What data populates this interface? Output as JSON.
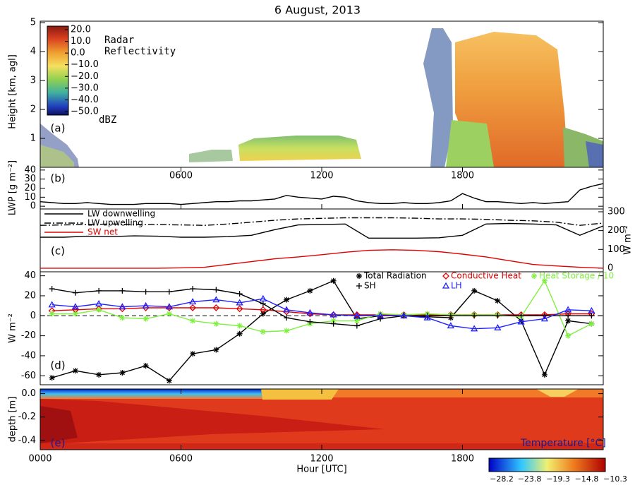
{
  "chart_data": [
    {
      "type": "heatmap",
      "title": "6 August, 2013",
      "label": "(a)",
      "ylabel": "Height [km, agl]",
      "xlim": [
        0,
        24
      ],
      "ylim": [
        0,
        5.05
      ],
      "yticks": [
        1,
        2,
        3,
        4,
        5
      ],
      "colorbar_title": [
        "Radar",
        "Reflectivity"
      ],
      "colorbar_unit": "dBZ",
      "cticks": [
        {
          "value": 20,
          "label": "20.0"
        },
        {
          "value": 10,
          "label": "10.0"
        },
        {
          "value": 0,
          "label": "0.0"
        },
        {
          "value": -10,
          "label": "−10.0"
        },
        {
          "value": -20,
          "label": "−20.0"
        },
        {
          "value": -30,
          "label": "−30.0"
        },
        {
          "value": -40,
          "label": "−40.0"
        },
        {
          "value": -50,
          "label": "−50.0"
        }
      ]
    },
    {
      "type": "line",
      "label": "(b)",
      "ylabel": "LWP [g m⁻²]",
      "xlim": [
        0,
        24
      ],
      "ylim": [
        -3,
        43
      ],
      "yticks": [
        0,
        10,
        20,
        30,
        40
      ],
      "xticks": [
        {
          "value": 6,
          "label": "0600"
        },
        {
          "value": 12,
          "label": "1200"
        },
        {
          "value": 18,
          "label": "1800"
        }
      ],
      "x": [
        0,
        0.5,
        1,
        1.5,
        2,
        2.5,
        3,
        3.5,
        4,
        4.5,
        5,
        5.5,
        6,
        6.5,
        7,
        7.5,
        8,
        8.5,
        9,
        9.5,
        10,
        10.5,
        11,
        11.5,
        12,
        12.5,
        13,
        13.5,
        14,
        14.5,
        15,
        15.5,
        16,
        16.5,
        17,
        17.5,
        18,
        18.5,
        19,
        19.5,
        20,
        20.5,
        21,
        21.5,
        22,
        22.5,
        23,
        23.5,
        24
      ],
      "values": [
        5,
        4,
        3,
        3,
        4,
        3,
        2,
        2,
        2,
        3,
        3,
        3,
        2,
        3,
        4,
        5,
        5,
        6,
        6,
        7,
        8,
        12,
        10,
        9,
        8,
        11,
        10,
        6,
        4,
        3,
        3,
        4,
        3,
        3,
        4,
        6,
        14,
        9,
        5,
        5,
        4,
        3,
        4,
        3,
        4,
        5,
        18,
        22,
        25
      ],
      "color": "#000000"
    },
    {
      "type": "line",
      "label": "(c)",
      "y2label": "W m⁻²",
      "xlim": [
        0,
        24
      ],
      "y2lim": [
        -19,
        315
      ],
      "y2ticks": [
        0,
        100,
        200,
        300
      ],
      "legend": "upper left",
      "x": [
        0,
        1,
        2,
        3,
        4,
        5,
        6,
        7,
        8,
        9,
        10,
        11,
        12,
        13,
        14,
        15,
        16,
        17,
        18,
        19,
        20,
        21,
        22,
        23,
        24
      ],
      "series": [
        {
          "name": "LW downwelling",
          "color": "#000000",
          "dash": "solid",
          "axis": "y2",
          "values": [
            165,
            165,
            170,
            168,
            172,
            170,
            165,
            165,
            168,
            175,
            205,
            230,
            232,
            235,
            160,
            160,
            160,
            162,
            175,
            235,
            238,
            235,
            230,
            175,
            225
          ]
        },
        {
          "name": "LW upwelling",
          "color": "#000000",
          "dash": "dash-dot",
          "axis": "y2",
          "values": [
            228,
            230,
            232,
            235,
            232,
            232,
            230,
            228,
            235,
            245,
            255,
            262,
            265,
            268,
            268,
            268,
            266,
            262,
            262,
            260,
            255,
            252,
            245,
            228,
            240
          ]
        },
        {
          "name": "SW net",
          "color": "#e00000",
          "dash": "solid",
          "axis": "y2",
          "values": [
            0,
            0,
            0,
            0,
            0,
            0,
            2,
            5,
            20,
            35,
            50,
            60,
            72,
            85,
            95,
            98,
            95,
            88,
            75,
            60,
            40,
            20,
            12,
            5,
            0
          ]
        }
      ]
    },
    {
      "type": "line",
      "label": "(d)",
      "ylabel": "W m⁻²",
      "xlim": [
        0,
        24
      ],
      "ylim": [
        -69,
        44
      ],
      "yticks": [
        -60,
        -40,
        -20,
        0,
        20,
        40
      ],
      "hline": 0,
      "legend": "upper right",
      "x": [
        0.5,
        1.5,
        2.5,
        3.5,
        4.5,
        5.5,
        6.5,
        7.5,
        8.5,
        9.5,
        10.5,
        11.5,
        12.5,
        13.5,
        14.5,
        15.5,
        16.5,
        17.5,
        18.5,
        19.5,
        20.5,
        21.5,
        22.5,
        23.5
      ],
      "series": [
        {
          "name": "Total Radiation",
          "color": "#000000",
          "marker": "asterisk",
          "values": [
            -62,
            -55,
            -59,
            -57,
            -50,
            -65,
            -38,
            -34,
            -18,
            2,
            16,
            25,
            35,
            -3,
            0,
            0,
            -1,
            -2,
            25,
            15,
            -5,
            -59,
            -5,
            -8
          ]
        },
        {
          "name": "Conductive Heat",
          "color": "#e00000",
          "marker": "diamond",
          "values": [
            5,
            6,
            7,
            7,
            8,
            8,
            8,
            8,
            7,
            6,
            4,
            2,
            1,
            1,
            1,
            1,
            1,
            1,
            1,
            1,
            1,
            1,
            2,
            2
          ]
        },
        {
          "name": "Heat Storage / 10",
          "color": "#80f040",
          "marker": "asterisk",
          "values": [
            2,
            2,
            6,
            -2,
            -3,
            2,
            -5,
            -8,
            -10,
            -16,
            -15,
            -8,
            -5,
            -5,
            2,
            1,
            2,
            1,
            1,
            1,
            -1,
            35,
            -20,
            -8
          ]
        },
        {
          "name": "SH",
          "color": "#000000",
          "marker": "plus",
          "values": [
            27,
            23,
            25,
            25,
            24,
            24,
            27,
            26,
            22,
            12,
            -2,
            -6,
            -8,
            -10,
            -3,
            0,
            0,
            0,
            0,
            0,
            0,
            0,
            0,
            0
          ]
        },
        {
          "name": "LH",
          "color": "#2020ff",
          "marker": "triangle",
          "values": [
            11,
            9,
            12,
            9,
            10,
            9,
            14,
            16,
            13,
            17,
            6,
            3,
            1,
            0,
            0,
            0,
            -2,
            -10,
            -13,
            -12,
            -6,
            -3,
            6,
            5
          ]
        }
      ]
    },
    {
      "type": "heatmap",
      "label": "(e)",
      "ylabel": "depth [m]",
      "xlabel": "Hour [UTC]",
      "xlim": [
        0,
        24
      ],
      "ylim": [
        -0.48,
        0.04
      ],
      "yticks": [
        {
          "value": 0,
          "label": "0.0"
        },
        {
          "value": -0.2,
          "label": "-0.2"
        },
        {
          "value": -0.4,
          "label": "-0.4"
        }
      ],
      "xticks": [
        {
          "value": 0,
          "label": "0000"
        },
        {
          "value": 6,
          "label": "0600"
        },
        {
          "value": 12,
          "label": "1200"
        },
        {
          "value": 18,
          "label": "1800"
        }
      ],
      "colorbar_title": "Temperature [°C]",
      "cticks": [
        {
          "value": -28.2,
          "label": "−28.2"
        },
        {
          "value": -23.8,
          "label": "−23.8"
        },
        {
          "value": -19.3,
          "label": "−19.3"
        },
        {
          "value": -14.8,
          "label": "−14.8"
        },
        {
          "value": -10.3,
          "label": "−10.3"
        }
      ]
    }
  ]
}
